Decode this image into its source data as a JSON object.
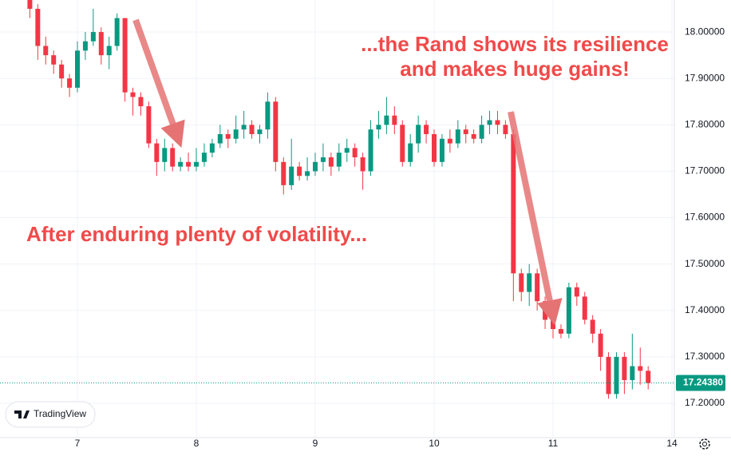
{
  "chart_data": {
    "type": "candlestick",
    "annotations": [
      "...the Rand shows its resilience",
      "and makes huge gains!",
      "After enduring plenty of volatility..."
    ],
    "watermark": "TradingView",
    "categories": [
      null,
      null,
      null,
      null,
      null,
      null,
      "7",
      null,
      null,
      null,
      null,
      null,
      null,
      null,
      null,
      null,
      null,
      null,
      null,
      null,
      null,
      "8",
      null,
      null,
      null,
      null,
      null,
      null,
      null,
      null,
      null,
      null,
      null,
      null,
      null,
      null,
      "9",
      null,
      null,
      null,
      null,
      null,
      null,
      null,
      null,
      null,
      null,
      null,
      null,
      null,
      null,
      "10",
      null,
      null,
      null,
      null,
      null,
      null,
      null,
      null,
      null,
      null,
      null,
      null,
      null,
      null,
      "11",
      null,
      null,
      null,
      null,
      null,
      null,
      null,
      null,
      null,
      null,
      null,
      null,
      null,
      null,
      "14"
    ],
    "open": [
      18.07,
      18.05,
      17.97,
      17.95,
      17.93,
      17.9,
      17.88,
      17.96,
      17.98,
      18.0,
      17.95,
      17.97,
      18.03,
      17.87,
      17.86,
      17.84,
      17.76,
      17.72,
      17.75,
      17.71,
      17.72,
      17.71,
      17.72,
      17.74,
      17.76,
      17.78,
      17.77,
      17.79,
      17.8,
      17.78,
      17.79,
      17.85,
      17.72,
      17.67,
      17.71,
      17.69,
      17.7,
      17.72,
      17.73,
      17.71,
      17.74,
      17.75,
      17.73,
      17.7,
      17.79,
      17.8,
      17.82,
      17.8,
      17.72,
      17.76,
      17.8,
      17.78,
      17.72,
      17.77,
      17.76,
      17.79,
      17.78,
      17.77,
      17.8,
      17.81,
      17.8,
      17.78,
      17.48,
      17.44,
      17.48,
      17.42,
      17.38,
      17.36,
      17.35,
      17.45,
      17.43,
      17.38,
      17.35,
      17.3,
      17.22,
      17.3,
      17.25,
      17.28,
      17.27,
      null,
      null,
      null
    ],
    "high": [
      18.08,
      18.06,
      17.99,
      17.96,
      17.94,
      17.91,
      17.98,
      18.0,
      18.05,
      18.01,
      17.99,
      18.04,
      18.03,
      17.88,
      17.87,
      17.85,
      17.77,
      17.77,
      17.76,
      17.73,
      17.74,
      17.75,
      17.76,
      17.77,
      17.8,
      17.79,
      17.82,
      17.83,
      17.81,
      17.8,
      17.87,
      17.86,
      17.73,
      17.77,
      17.72,
      17.73,
      17.74,
      17.76,
      17.74,
      17.76,
      17.77,
      17.76,
      17.74,
      17.81,
      17.83,
      17.86,
      17.84,
      17.81,
      17.78,
      17.82,
      17.81,
      17.79,
      17.78,
      17.79,
      17.81,
      17.8,
      17.79,
      17.82,
      17.83,
      17.83,
      17.81,
      17.79,
      17.49,
      17.5,
      17.49,
      17.43,
      17.39,
      17.37,
      17.46,
      17.46,
      17.44,
      17.39,
      17.36,
      17.31,
      17.31,
      17.31,
      17.35,
      17.32,
      17.28,
      null,
      null,
      null
    ],
    "low": [
      18.03,
      17.94,
      17.93,
      17.91,
      17.88,
      17.86,
      17.87,
      17.94,
      17.97,
      17.93,
      17.92,
      17.96,
      17.85,
      17.82,
      17.82,
      17.75,
      17.69,
      17.7,
      17.7,
      17.7,
      17.7,
      17.7,
      17.71,
      17.73,
      17.75,
      17.75,
      17.76,
      17.77,
      17.77,
      17.76,
      17.77,
      17.7,
      17.65,
      17.66,
      17.68,
      17.68,
      17.69,
      17.7,
      17.69,
      17.7,
      17.72,
      17.71,
      17.66,
      17.69,
      17.77,
      17.78,
      17.78,
      17.71,
      17.71,
      17.74,
      17.76,
      17.71,
      17.71,
      17.74,
      17.75,
      17.76,
      17.76,
      17.76,
      17.78,
      17.78,
      17.77,
      17.42,
      17.42,
      17.41,
      17.4,
      17.36,
      17.34,
      17.34,
      17.34,
      17.41,
      17.37,
      17.33,
      17.27,
      17.21,
      17.21,
      17.22,
      17.23,
      17.24,
      17.23,
      null,
      null,
      null
    ],
    "close": [
      18.05,
      17.97,
      17.95,
      17.93,
      17.9,
      17.88,
      17.96,
      17.98,
      18.0,
      17.95,
      17.97,
      18.03,
      17.87,
      17.86,
      17.84,
      17.76,
      17.72,
      17.75,
      17.71,
      17.72,
      17.71,
      17.72,
      17.74,
      17.76,
      17.78,
      17.77,
      17.79,
      17.8,
      17.78,
      17.79,
      17.85,
      17.72,
      17.67,
      17.71,
      17.69,
      17.7,
      17.72,
      17.73,
      17.71,
      17.74,
      17.75,
      17.73,
      17.7,
      17.79,
      17.8,
      17.82,
      17.8,
      17.72,
      17.76,
      17.8,
      17.78,
      17.72,
      17.77,
      17.76,
      17.79,
      17.78,
      17.77,
      17.8,
      17.81,
      17.8,
      17.78,
      17.48,
      17.44,
      17.48,
      17.42,
      17.38,
      17.36,
      17.35,
      17.45,
      17.43,
      17.38,
      17.35,
      17.3,
      17.22,
      17.3,
      17.25,
      17.28,
      17.27,
      17.2438,
      null,
      null,
      null
    ],
    "up_color": "#089981",
    "down_color": "#f23645",
    "last_price": {
      "value": 17.2438,
      "label": "17.24380"
    },
    "ylim": [
      17.126,
      18.069
    ],
    "yticks": [
      {
        "value": 17.2,
        "label": "17.20000"
      },
      {
        "value": 17.3,
        "label": "17.30000"
      },
      {
        "value": 17.4,
        "label": "17.40000"
      },
      {
        "value": 17.5,
        "label": "17.50000"
      },
      {
        "value": 17.6,
        "label": "17.60000"
      },
      {
        "value": 17.7,
        "label": "17.70000"
      },
      {
        "value": 17.8,
        "label": "17.80000"
      },
      {
        "value": 17.9,
        "label": "17.90000"
      },
      {
        "value": 18.0,
        "label": "18.00000"
      }
    ],
    "grid": true
  }
}
